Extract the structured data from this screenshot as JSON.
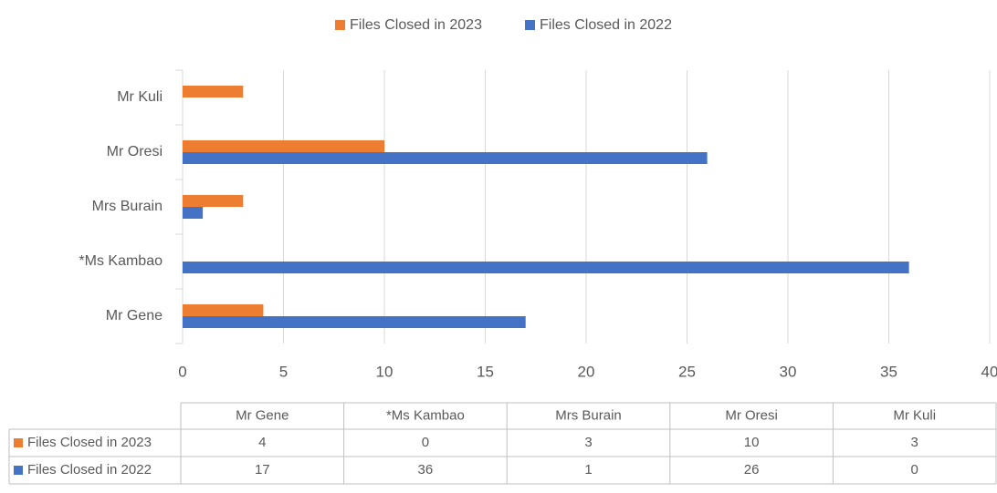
{
  "chart_data": {
    "type": "bar",
    "orientation": "horizontal",
    "categories": [
      "Mr Gene",
      "*Ms Kambao",
      "Mrs Burain",
      "Mr Oresi",
      "Mr Kuli"
    ],
    "series": [
      {
        "name": "Files Closed in 2023",
        "color": "#ed7d31",
        "values": [
          4,
          0,
          3,
          10,
          3
        ]
      },
      {
        "name": "Files Closed in 2022",
        "color": "#4472c4",
        "values": [
          17,
          36,
          1,
          26,
          0
        ]
      }
    ],
    "xlim": [
      0,
      40
    ],
    "xticks": [
      0,
      5,
      10,
      15,
      20,
      25,
      30,
      35,
      40
    ],
    "grid": true,
    "legend": "top",
    "data_table": true
  }
}
